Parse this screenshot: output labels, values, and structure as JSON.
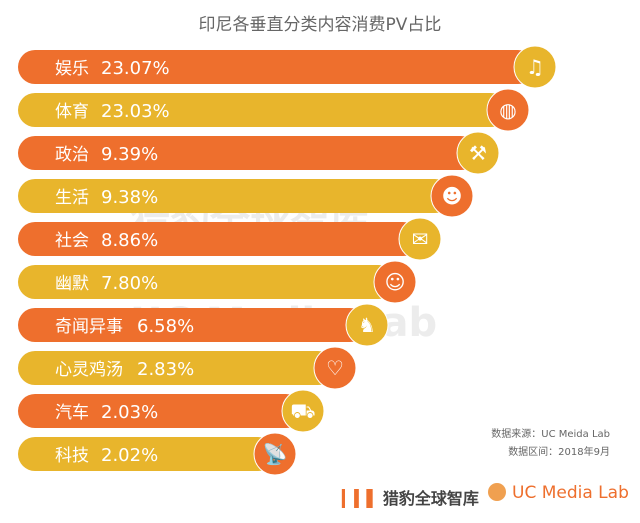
{
  "chart_data": {
    "type": "bar",
    "orientation": "horizontal",
    "title": "印尼各垂直分类内容消费PV占比",
    "unit": "%",
    "categories": [
      "娱乐",
      "体育",
      "政治",
      "生活",
      "社会",
      "幽默",
      "奇闻异事",
      "心灵鸡汤",
      "汽车",
      "科技"
    ],
    "values": [
      23.07,
      23.03,
      9.39,
      9.38,
      8.86,
      7.8,
      6.58,
      2.83,
      2.03,
      2.02
    ],
    "labels": [
      "23.07%",
      "23.03%",
      "9.39%",
      "9.38%",
      "8.86%",
      "7.80%",
      "6.58%",
      "2.83%",
      "2.03%",
      "2.02%"
    ],
    "icons": [
      "music-note-icon",
      "basketball-icon",
      "gavel-icon",
      "group-icon",
      "chat-bubbles-icon",
      "smiley-icon",
      "cat-face-icon",
      "heart-icon",
      "car-icon",
      "satellite-dish-icon"
    ],
    "colors": {
      "orange": "#ee6f2d",
      "yellow": "#e8b52c"
    }
  },
  "source": {
    "line1": "数据来源：UC Meida Lab",
    "line2": "数据区间：2018年9月"
  },
  "watermarks": {
    "w1": "猎豹全球智库",
    "w2": "UC Media Lab"
  },
  "logos": {
    "brand1": "猎豹全球智库",
    "brand2": "UC Media Lab"
  }
}
